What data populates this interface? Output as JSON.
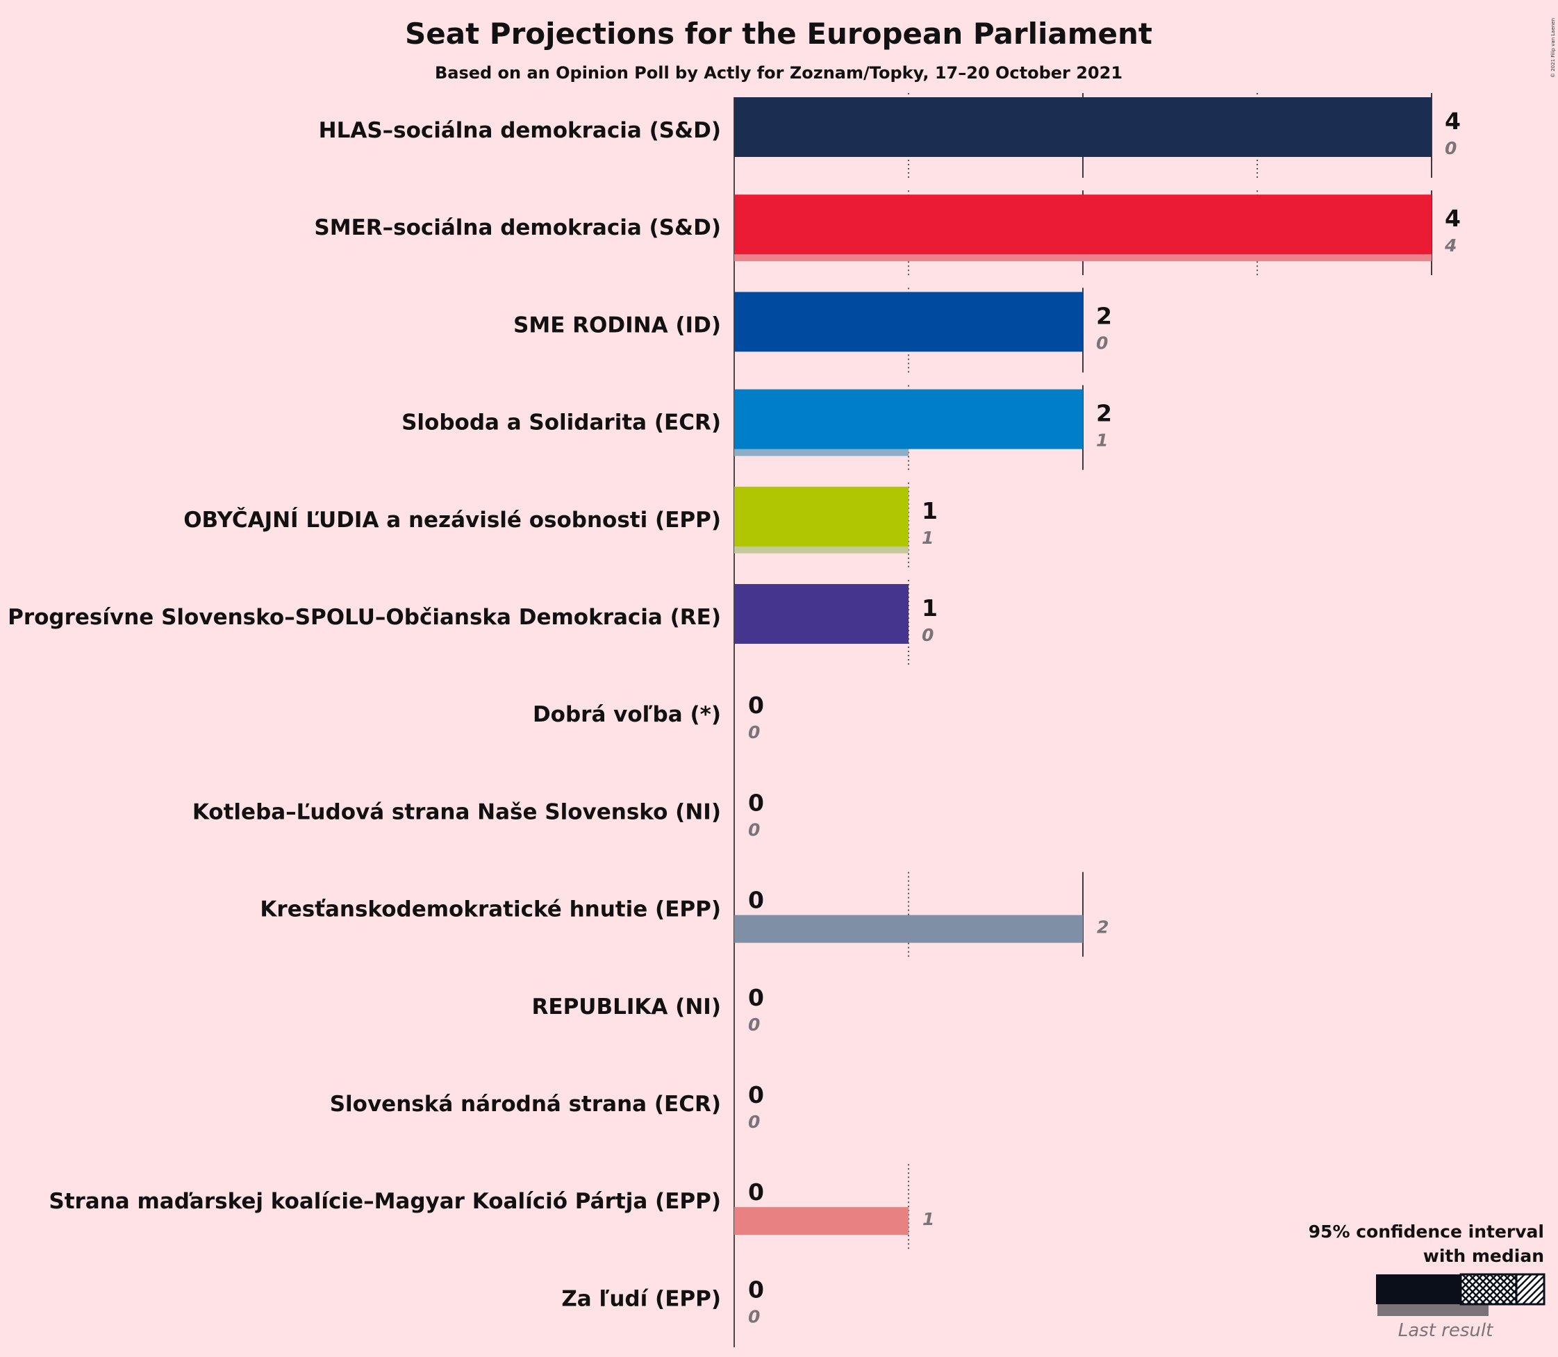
{
  "chart_data": {
    "type": "bar",
    "title": "Seat Projections for the European Parliament",
    "subtitle": "Based on an Opinion Poll by Actly for Zoznam/Topky, 17–20 October 2021",
    "copyright": "© 2021 Filip van Laenen",
    "xlim": [
      0,
      4
    ],
    "grid": true,
    "legend": {
      "placement": "bottom-right",
      "ci_label_line1": "95% confidence interval",
      "ci_label_line2": "with median",
      "last_label": "Last result"
    },
    "series": [
      {
        "name": "HLAS–sociálna demokracia (S&D)",
        "color": "#1b2e52",
        "last_color": "#8c97ab",
        "ci_low": 4,
        "median": 4,
        "ci_high": 4,
        "last": 0,
        "median_label": "4",
        "last_label": "0"
      },
      {
        "name": "SMER–sociálna demokracia (S&D)",
        "color": "#ea1b32",
        "last_color": "#e9848f",
        "ci_low": 4,
        "median": 4,
        "ci_high": 4,
        "last": 4,
        "median_label": "4",
        "last_label": "4"
      },
      {
        "name": "SME RODINA (ID)",
        "color": "#004ba0",
        "last_color": "#7fa5d0",
        "ci_low": 2,
        "median": 2,
        "ci_high": 2,
        "last": 0,
        "median_label": "2",
        "last_label": "0"
      },
      {
        "name": "Sloboda a Solidarita (ECR)",
        "color": "#007fc8",
        "last_color": "#8eaec8",
        "ci_low": 2,
        "median": 2,
        "ci_high": 2,
        "last": 1,
        "median_label": "2",
        "last_label": "1"
      },
      {
        "name": "OBYČAJNÍ ĽUDIA a nezávislé osobnosti (EPP)",
        "color": "#afc600",
        "last_color": "#c4c89a",
        "ci_low": 1,
        "median": 1,
        "ci_high": 1,
        "last": 1,
        "median_label": "1",
        "last_label": "1"
      },
      {
        "name": "Progresívne Slovensko–SPOLU–Občianska Demokracia (RE)",
        "color": "#46358f",
        "last_color": "#a29ac7",
        "ci_low": 1,
        "median": 1,
        "ci_high": 1,
        "last": 0,
        "median_label": "1",
        "last_label": "0"
      },
      {
        "name": "Dobrá voľba (*)",
        "color": "#888888",
        "last_color": "#b0b0b0",
        "ci_low": 0,
        "median": 0,
        "ci_high": 0,
        "last": 0,
        "median_label": "0",
        "last_label": "0"
      },
      {
        "name": "Kotleba–Ľudová strana Naše Slovensko (NI)",
        "color": "#3b5a2e",
        "last_color": "#9aaa90",
        "ci_low": 0,
        "median": 0,
        "ci_high": 0,
        "last": 0,
        "median_label": "0",
        "last_label": "0"
      },
      {
        "name": "Kresťanskodemokratické hnutie (EPP)",
        "color": "#1c3f6e",
        "last_color": "#7f8fa5",
        "ci_low": 0,
        "median": 0,
        "ci_high": 0,
        "last": 2,
        "median_label": "0",
        "last_label": "2"
      },
      {
        "name": "REPUBLIKA (NI)",
        "color": "#555555",
        "last_color": "#aaaaaa",
        "ci_low": 0,
        "median": 0,
        "ci_high": 0,
        "last": 0,
        "median_label": "0",
        "last_label": "0"
      },
      {
        "name": "Slovenská národná strana (ECR)",
        "color": "#2b4b8c",
        "last_color": "#95a5c6",
        "ci_low": 0,
        "median": 0,
        "ci_high": 0,
        "last": 0,
        "median_label": "0",
        "last_label": "0"
      },
      {
        "name": "Strana maďarskej koalície–Magyar Koalíció Pártja (EPP)",
        "color": "#c8102e",
        "last_color": "#e88282",
        "ci_low": 0,
        "median": 0,
        "ci_high": 0,
        "last": 1,
        "median_label": "0",
        "last_label": "1"
      },
      {
        "name": "Za ľudí (EPP)",
        "color": "#6a3d9a",
        "last_color": "#b49ecc",
        "ci_low": 0,
        "median": 0,
        "ci_high": 0,
        "last": 0,
        "median_label": "0",
        "last_label": "0"
      }
    ]
  }
}
